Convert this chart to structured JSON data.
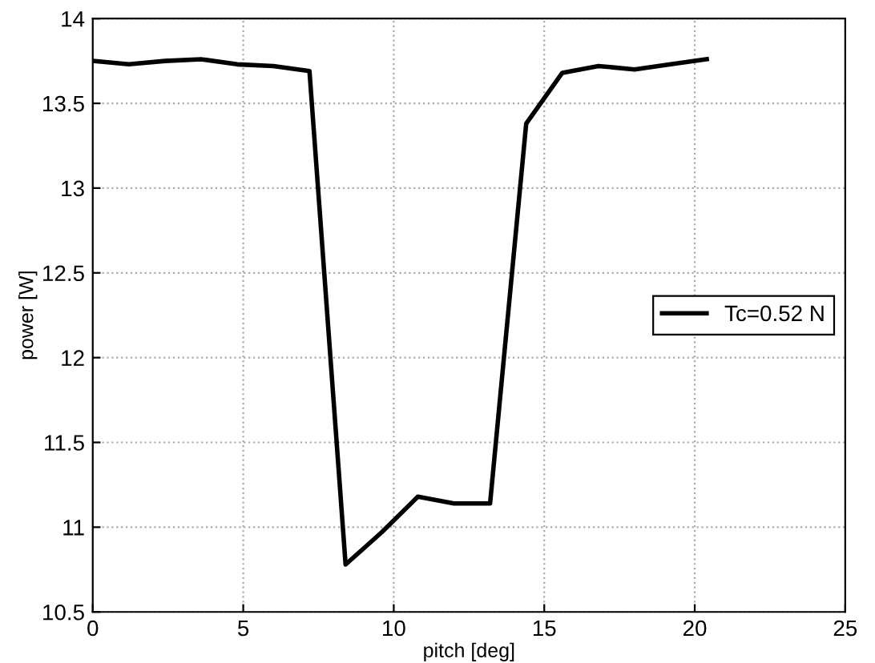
{
  "chart_data": {
    "type": "line",
    "xlabel": "pitch [deg]",
    "ylabel": "power [W]",
    "x": [
      0,
      1.2,
      2.4,
      3.6,
      4.8,
      6.0,
      7.2,
      8.4,
      9.6,
      10.8,
      12.0,
      13.2,
      14.4,
      15.6,
      16.8,
      18.0,
      19.2,
      20.4
    ],
    "series": [
      {
        "name": "Tc=0.52 N",
        "color": "#000000",
        "values": [
          13.75,
          13.73,
          13.75,
          13.76,
          13.73,
          13.72,
          13.69,
          10.78,
          10.97,
          11.18,
          11.14,
          11.14,
          13.38,
          13.68,
          13.72,
          13.7,
          13.73,
          13.76
        ]
      }
    ],
    "xlim": [
      0,
      25
    ],
    "xticks": [
      0,
      5,
      10,
      15,
      20,
      25
    ],
    "ylim": [
      10.5,
      14
    ],
    "yticks": [
      10.5,
      11,
      11.5,
      12,
      12.5,
      13,
      13.5,
      14
    ],
    "grid": true,
    "legend": "right",
    "line_style": "solid",
    "marker": "none"
  }
}
